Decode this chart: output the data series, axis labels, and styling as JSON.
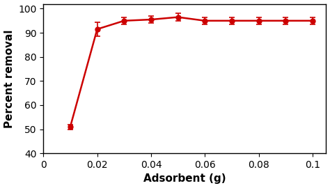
{
  "x": [
    0.01,
    0.02,
    0.03,
    0.04,
    0.05,
    0.06,
    0.07,
    0.08,
    0.09,
    0.1
  ],
  "y": [
    51.0,
    91.5,
    95.0,
    95.5,
    96.5,
    95.0,
    95.0,
    95.0,
    95.0,
    95.0
  ],
  "yerr": [
    1.0,
    3.0,
    1.5,
    1.5,
    1.5,
    1.5,
    1.5,
    1.5,
    1.5,
    1.5
  ],
  "line_color": "#cc0000",
  "marker_color": "#cc0000",
  "marker_size": 5,
  "line_width": 1.8,
  "xlabel": "Adsorbent (g)",
  "ylabel": "Percent removal",
  "xlim": [
    0,
    0.105
  ],
  "ylim": [
    40,
    102
  ],
  "xticks": [
    0,
    0.02,
    0.04,
    0.06,
    0.08,
    0.1
  ],
  "yticks": [
    40,
    50,
    60,
    70,
    80,
    90,
    100
  ],
  "xlabel_fontsize": 11,
  "ylabel_fontsize": 11,
  "tick_fontsize": 10,
  "background_color": "#ffffff",
  "capsize": 3,
  "elinewidth": 1.2
}
